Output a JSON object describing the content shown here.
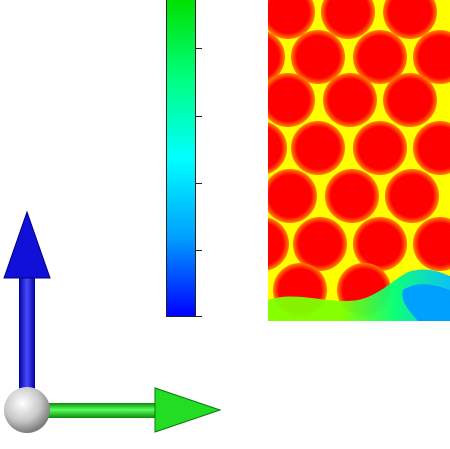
{
  "viewport": {
    "background": "#ffffff"
  },
  "colorbar": {
    "colormap": "rainbow",
    "stops": [
      "#0000ff",
      "#00a0ff",
      "#00ffff",
      "#00ff80",
      "#00e000"
    ],
    "tick_count": 5
  },
  "field": {
    "background_color": "#ffff00",
    "blob_color": "#ff0000",
    "edge_colors": [
      "#00c0ff",
      "#00ff80",
      "#80ff00"
    ]
  },
  "triad": {
    "x_axis_color": "#22dd22",
    "y_axis_color": "#1a1adc",
    "origin_color": "#cfcfcf"
  }
}
